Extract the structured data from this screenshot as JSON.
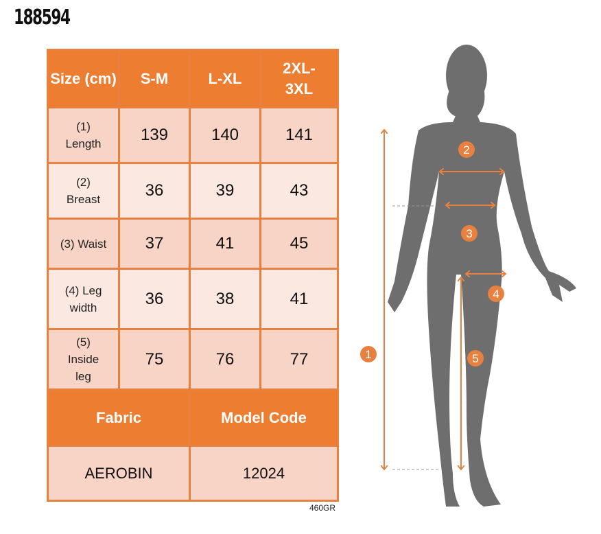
{
  "product_code": "460GR",
  "title": "188594",
  "table": {
    "header": [
      "Size (cm)",
      "S-M",
      "L-XL",
      "2XL-3XL"
    ],
    "rows": [
      {
        "label": "(1) Length",
        "values": [
          "139",
          "140",
          "141"
        ]
      },
      {
        "label": "(2) Breast",
        "values": [
          "36",
          "39",
          "43"
        ]
      },
      {
        "label": "(3) Waist",
        "values": [
          "37",
          "41",
          "45"
        ]
      },
      {
        "label": "(4) Leg width",
        "values": [
          "36",
          "38",
          "41"
        ]
      },
      {
        "label": "(5) Inside leg",
        "values": [
          "75",
          "76",
          "77"
        ]
      }
    ],
    "fabric_header": "Fabric",
    "model_code_header": "Model Code",
    "fabric": "AEROBIN",
    "model_code": "12024"
  },
  "figure": {
    "markers": [
      "1",
      "2",
      "3",
      "4",
      "5"
    ]
  },
  "colors": {
    "accent": "#ED7D31",
    "cell_dark": "#F7D4C6",
    "cell_light": "#FBE8E1",
    "silhouette": "#6E6E6E"
  }
}
